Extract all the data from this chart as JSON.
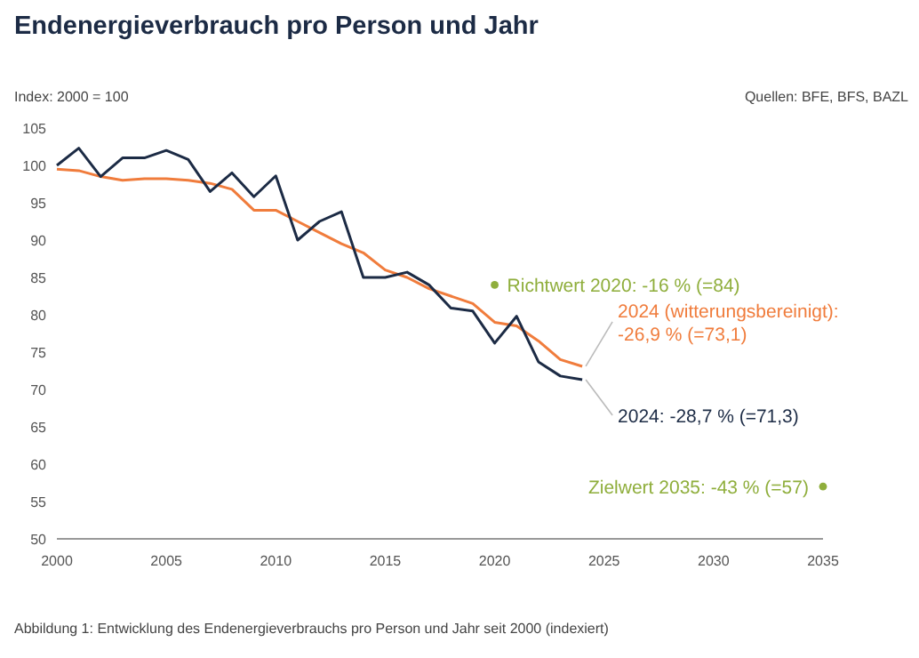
{
  "chart_data": {
    "type": "line",
    "title": "Endenergieverbrauch pro Person und Jahr",
    "ylabel": "Index: 2000 = 100",
    "x": [
      2000,
      2001,
      2002,
      2003,
      2004,
      2005,
      2006,
      2007,
      2008,
      2009,
      2010,
      2011,
      2012,
      2013,
      2014,
      2015,
      2016,
      2017,
      2018,
      2019,
      2020,
      2021,
      2022,
      2023,
      2024
    ],
    "series": [
      {
        "color": "#f07c3c",
        "values": [
          99.5,
          99.3,
          98.5,
          98,
          98.2,
          98.2,
          98,
          97.6,
          96.8,
          94,
          94,
          92.5,
          91,
          89.5,
          88.3,
          86,
          85,
          83.5,
          82.5,
          81.5,
          79,
          78.5,
          76.5,
          74,
          73.1
        ]
      },
      {
        "color": "#1c2b45",
        "values": [
          100,
          102.3,
          98.5,
          101,
          101,
          102,
          100.8,
          96.5,
          99,
          95.8,
          98.6,
          90,
          92.5,
          93.8,
          85,
          85,
          85.7,
          84,
          80.9,
          80.5,
          76.2,
          79.8,
          73.7,
          71.8,
          71.3
        ]
      },
      {
        "type": "scatter",
        "color": "#8fae3c",
        "x": [
          2020,
          2035
        ],
        "values": [
          84,
          57
        ]
      }
    ],
    "xlim": [
      2000,
      2035
    ],
    "xticks": [
      2000,
      2005,
      2010,
      2015,
      2020,
      2025,
      2030,
      2035
    ],
    "ylim": [
      50,
      105
    ],
    "yticks": [
      50,
      55,
      60,
      65,
      70,
      75,
      80,
      85,
      90,
      95,
      100,
      105
    ],
    "annotations": [
      {
        "text": "Richtwert 2020: -16 % (=84)",
        "x": 2020,
        "y": 84
      },
      {
        "text": "Zielwert 2035: -43 % (=57)",
        "x": 2035,
        "y": 57
      },
      {
        "text": "2024 (witterungsbereinigt):\n-26,9 % (=73,1)",
        "x": 2024,
        "y": 73.1
      },
      {
        "text": "2024: -28,7 % (=71,3)",
        "x": 2024,
        "y": 71.3
      },
      "Quellen: BFE, BFS, BAZL",
      "Abbildung 1: Entwicklung des Endenergieverbrauchs pro Person und Jahr seit 2000 (indexiert)"
    ]
  }
}
